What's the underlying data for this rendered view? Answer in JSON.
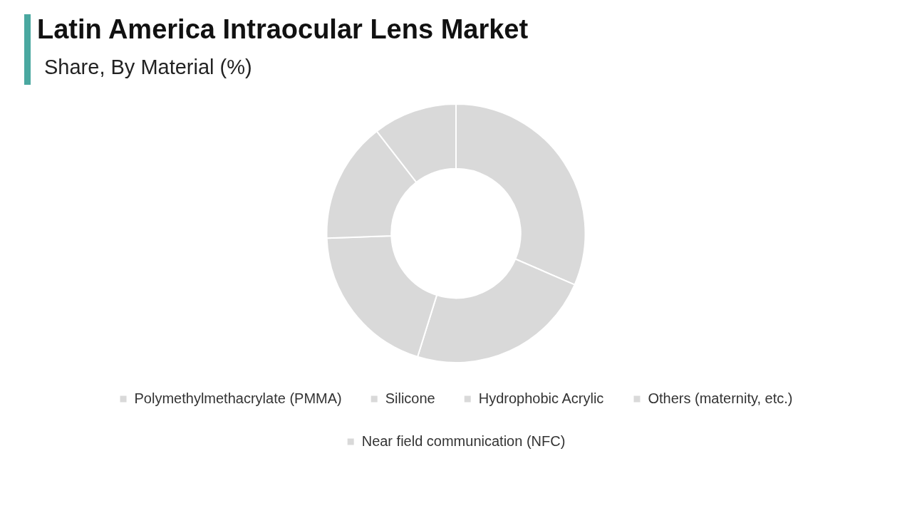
{
  "chart_data": {
    "type": "donut",
    "title": "Latin America Intraocular Lens Market",
    "subtitle": "Share, By Material (%)",
    "categories": [
      "Polymethylmethacrylate (PMMA)",
      "Silicone",
      "Hydrophobic Acrylic",
      "Others (maternity, etc.)",
      "Near field communication (NFC)"
    ],
    "values": [
      31.5,
      23.3,
      19.6,
      15.1,
      10.5
    ],
    "colors": [
      "#d9d9d9",
      "#d9d9d9",
      "#d9d9d9",
      "#d9d9d9",
      "#d9d9d9"
    ],
    "legend": "bottom"
  }
}
